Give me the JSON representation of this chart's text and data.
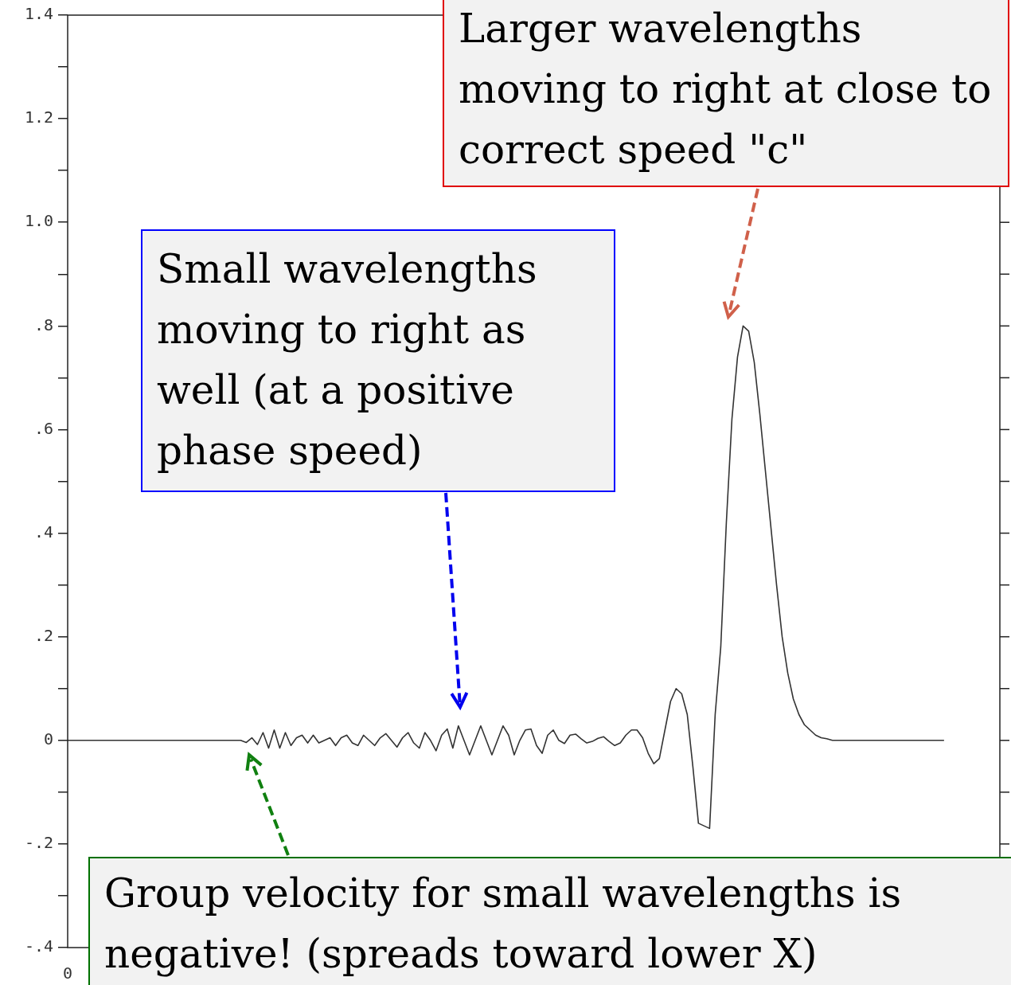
{
  "chart_data": {
    "type": "line",
    "categories": [
      "0",
      null,
      null,
      null,
      null,
      null,
      null,
      null,
      null,
      null,
      null,
      null,
      null,
      null,
      null,
      null,
      null,
      null,
      null,
      null,
      null,
      null,
      null,
      null,
      null,
      null,
      null,
      null,
      null,
      null,
      null,
      null,
      null,
      null,
      null,
      null,
      null,
      null,
      null,
      null,
      null,
      null,
      null,
      null,
      null,
      null,
      null,
      null,
      null,
      null,
      null,
      null,
      null,
      null,
      null,
      null,
      null,
      null,
      null,
      null,
      null,
      null,
      null,
      null,
      null,
      null,
      null,
      null,
      null,
      null,
      null,
      null,
      null,
      null,
      null,
      null,
      null,
      null,
      null,
      null,
      null,
      null,
      null,
      null,
      null,
      null,
      null,
      null,
      null,
      null,
      null,
      null,
      null,
      null,
      null,
      null,
      null,
      null,
      null,
      null,
      null,
      null,
      null,
      null,
      null,
      null,
      null,
      null,
      null,
      null,
      null,
      null,
      null,
      null,
      null,
      null,
      null,
      null,
      null,
      null,
      null,
      null,
      null,
      null,
      null,
      null,
      null,
      null,
      null,
      null,
      null,
      null,
      null,
      null,
      null,
      null,
      null,
      null,
      null,
      null,
      null,
      null,
      null,
      null,
      null,
      null,
      null,
      null,
      null,
      null,
      null,
      null,
      null,
      null,
      null,
      null,
      null,
      null,
      null,
      null,
      null,
      null,
      null,
      null,
      null,
      null,
      null,
      null
    ],
    "series": [
      {
        "color": "#333333",
        "values": [
          0,
          0,
          0,
          0,
          0,
          0,
          0,
          0,
          0,
          0,
          0,
          0,
          0,
          0,
          0,
          0,
          0,
          0,
          0,
          0,
          0,
          0,
          0,
          0,
          0,
          0,
          0,
          0,
          0,
          0,
          0,
          0,
          -0.004,
          0.005,
          -0.008,
          0.015,
          -0.015,
          0.02,
          -0.015,
          0.015,
          -0.01,
          0.005,
          0.01,
          -0.005,
          0.01,
          -0.005,
          0,
          0.005,
          -0.01,
          0.005,
          0.01,
          -0.005,
          -0.01,
          0.01,
          0,
          -0.01,
          0.005,
          0.013,
          0,
          -0.013,
          0.005,
          0.015,
          -0.005,
          -0.015,
          0.015,
          0,
          -0.02,
          0.01,
          0.022,
          -0.015,
          0.028,
          0,
          -0.028,
          0,
          0.028,
          0,
          -0.028,
          0,
          0.028,
          0.01,
          -0.028,
          0,
          0.02,
          0.022,
          -0.01,
          -0.025,
          0.01,
          0.02,
          0,
          -0.006,
          0.01,
          0.012,
          0.003,
          -0.005,
          -0.002,
          0.004,
          0.007,
          -0.002,
          -0.01,
          -0.005,
          0.01,
          0.02,
          0.02,
          0.005,
          -0.025,
          -0.045,
          -0.035,
          0.02,
          0.075,
          0.1,
          0.09,
          0.05,
          -0.05,
          -0.16,
          null,
          -0.17,
          0.05,
          0.18,
          0.42,
          0.62,
          0.74,
          0.8,
          0.79,
          0.73,
          0.63,
          0.52,
          0.41,
          0.3,
          0.2,
          0.13,
          0.08,
          0.05,
          0.03,
          0.02,
          0.01,
          0.005,
          0.003,
          0,
          0,
          0,
          0,
          0,
          0,
          0,
          0,
          0,
          0,
          0,
          0,
          0,
          0,
          0,
          0,
          0,
          0,
          0,
          0,
          0,
          null,
          null,
          null,
          null,
          null,
          null,
          null,
          null,
          null,
          null
        ]
      }
    ],
    "ylim": [
      -0.4,
      1.4
    ],
    "yticks": [
      {
        "value": -0.4,
        "label": "-.4"
      },
      {
        "value": -0.3,
        "label": null
      },
      {
        "value": -0.2,
        "label": "-.2"
      },
      {
        "value": -0.1,
        "label": null
      },
      0,
      {
        "value": 0.1,
        "label": null
      },
      {
        "value": 0.2,
        "label": ".2"
      },
      {
        "value": 0.3,
        "label": null
      },
      {
        "value": 0.4,
        "label": ".4"
      },
      {
        "value": 0.5,
        "label": null
      },
      {
        "value": 0.6,
        "label": ".6"
      },
      {
        "value": 0.7,
        "label": null
      },
      {
        "value": 0.8,
        "label": ".8"
      },
      {
        "value": 0.9,
        "label": null
      },
      {
        "value": 1,
        "label": "1.0"
      },
      {
        "value": 1.1,
        "label": null
      },
      {
        "value": 1.2,
        "label": "1.2"
      },
      {
        "value": 1.3,
        "label": null
      },
      {
        "value": 1.4,
        "label": "1.4"
      }
    ],
    "marker": "none",
    "line_style": "solid",
    "annotations": [
      "Larger wavelengths moving to right at close to correct speed \"c\"",
      "Small wavelengths moving to right as well (at a positive phase speed)",
      "Group velocity for small wavelengths is negative! (spreads toward lower X)"
    ]
  }
}
